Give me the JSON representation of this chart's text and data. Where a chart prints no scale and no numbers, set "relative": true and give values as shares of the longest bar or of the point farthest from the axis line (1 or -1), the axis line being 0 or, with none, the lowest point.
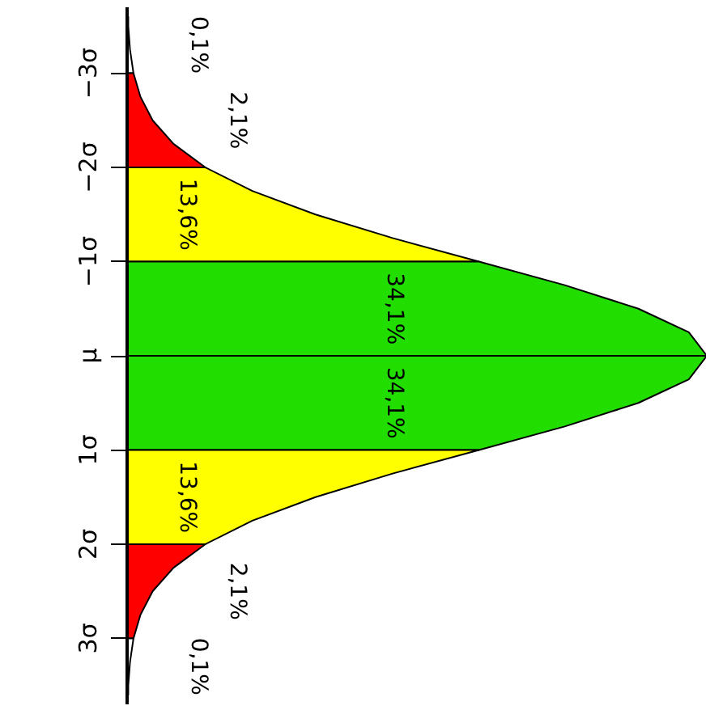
{
  "chart_data": {
    "type": "area",
    "orientation": "horizontal",
    "relative": true,
    "ylim": [
      3.7,
      -3.7
    ],
    "yticks": [
      {
        "value": -3,
        "label": "−3σ"
      },
      {
        "value": -2,
        "label": "−2σ"
      },
      {
        "value": -1,
        "label": "−1σ"
      },
      {
        "value": 0,
        "label": "μ"
      },
      {
        "value": 1,
        "label": "1σ"
      },
      {
        "value": 2,
        "label": "2σ"
      },
      {
        "value": 3,
        "label": "3σ"
      }
    ],
    "series": [
      {
        "color": "#ffffff",
        "x": [
          -3.6,
          -3.5,
          -3.25,
          -3
        ],
        "values": [
          0.002,
          0.002,
          0.005,
          0.011
        ]
      },
      {
        "color": "#ff0000",
        "x": [
          -3,
          -2.75,
          -2.5,
          -2.25,
          -2
        ],
        "values": [
          0.011,
          0.023,
          0.044,
          0.08,
          0.135
        ]
      },
      {
        "color": "#ffff00",
        "x": [
          -2,
          -1.75,
          -1.5,
          -1.25,
          -1
        ],
        "values": [
          0.135,
          0.216,
          0.325,
          0.458,
          0.607
        ]
      },
      {
        "color": "#22dd00",
        "x": [
          -1,
          -0.75,
          -0.5,
          -0.25,
          0
        ],
        "values": [
          0.607,
          0.755,
          0.882,
          0.969,
          1
        ]
      },
      {
        "color": "#22dd00",
        "x": [
          0,
          0.25,
          0.5,
          0.75,
          1
        ],
        "values": [
          1,
          0.969,
          0.882,
          0.755,
          0.607
        ]
      },
      {
        "color": "#ffff00",
        "x": [
          1,
          1.25,
          1.5,
          1.75,
          2
        ],
        "values": [
          0.607,
          0.458,
          0.325,
          0.216,
          0.135
        ]
      },
      {
        "color": "#ff0000",
        "x": [
          2,
          2.25,
          2.5,
          2.75,
          3
        ],
        "values": [
          0.135,
          0.08,
          0.044,
          0.023,
          0.011
        ]
      },
      {
        "color": "#ffffff",
        "x": [
          3,
          3.25,
          3.5,
          3.6
        ],
        "values": [
          0.011,
          0.005,
          0.002,
          0.002
        ]
      }
    ],
    "annotations": [
      "0,1%",
      "2,1%",
      "13,6%",
      "34,1%",
      "34,1%",
      "13,6%",
      "2,1%",
      "0,1%"
    ]
  }
}
